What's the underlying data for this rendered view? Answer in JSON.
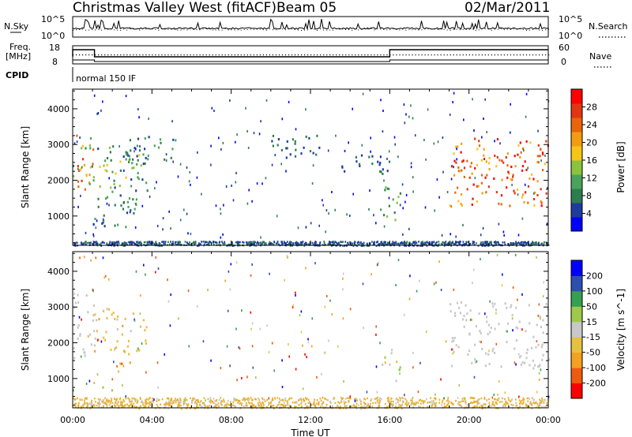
{
  "header": {
    "station": "Christmas Valley West (fitACF)",
    "beam": "Beam 05",
    "date": "02/Mar/2011"
  },
  "summary_panel": {
    "nsky_label": "N.Sky",
    "nsearch_label": "N.Search",
    "noise_tick_top": "10^5",
    "noise_tick_bottom": "10^0",
    "freq_label_line1": "Freq.",
    "freq_label_line2": "[MHz]",
    "freq_ticks": [
      "18",
      "8"
    ],
    "nave_label": "Nave",
    "nave_ticks": [
      "60",
      "0"
    ],
    "cpid_label": "CPID",
    "cpid_value": "normal 150 IF"
  },
  "colors": {
    "power_scale": [
      "#0000ff",
      "#1e3ca0",
      "#2e7d4f",
      "#4aa35a",
      "#8ac33e",
      "#f5c518",
      "#f39c12",
      "#e8650c",
      "#e33512",
      "#ff0000"
    ],
    "velocity_scale": [
      "#ff0000",
      "#ee5a0f",
      "#f4a020",
      "#e8c040",
      "#c8c8c8",
      "#9ec94a",
      "#35a050",
      "#2f4fb0",
      "#0000ff"
    ],
    "ground_scatter": "#c8c8c8"
  },
  "chart_data": [
    {
      "type": "heatmap",
      "title": "",
      "xlabel": "",
      "ylabel": "Slant Range [km]",
      "xlim": [
        "00:00",
        "24:00"
      ],
      "ylim": [
        180,
        4550
      ],
      "x_tick_labels": [
        "00:00",
        "04:00",
        "08:00",
        "12:00",
        "16:00",
        "20:00",
        "00:00"
      ],
      "y_tick_labels": [
        "1000",
        "2000",
        "3000",
        "4000"
      ],
      "colorbar": {
        "label": "Power [dB]",
        "ticks": [
          "28",
          "24",
          "20",
          "16",
          "12",
          "8",
          "4"
        ],
        "range": [
          0,
          30
        ]
      },
      "regions": [
        {
          "t": [
            0.0,
            1.0
          ],
          "r": [
            1600,
            3500
          ],
          "value_dB": [
            8,
            28
          ]
        },
        {
          "t": [
            1.0,
            3.8
          ],
          "r": [
            1700,
            3000
          ],
          "value_dB": [
            4,
            16
          ]
        },
        {
          "t": [
            1.0,
            3.2
          ],
          "r": [
            700,
            1700
          ],
          "value_dB": [
            4,
            12
          ]
        },
        {
          "t": [
            2.5,
            5.2
          ],
          "r": [
            2600,
            3300
          ],
          "value_dB": [
            4,
            12
          ]
        },
        {
          "t": [
            10.0,
            12.5
          ],
          "r": [
            2600,
            3300
          ],
          "value_dB": [
            4,
            8
          ]
        },
        {
          "t": [
            13.5,
            16.0
          ],
          "r": [
            2200,
            2800
          ],
          "value_dB": [
            4,
            8
          ]
        },
        {
          "t": [
            15.5,
            16.5
          ],
          "r": [
            900,
            1900
          ],
          "value_dB": [
            4,
            16
          ]
        },
        {
          "t": [
            19.0,
            24.0
          ],
          "r": [
            1300,
            3200
          ],
          "value_dB": [
            16,
            30
          ]
        }
      ]
    },
    {
      "type": "heatmap",
      "title": "",
      "xlabel": "Time UT",
      "ylabel": "Slant Range [km]",
      "xlim": [
        "00:00",
        "24:00"
      ],
      "ylim": [
        180,
        4550
      ],
      "x_tick_labels": [
        "00:00",
        "04:00",
        "08:00",
        "12:00",
        "16:00",
        "20:00",
        "00:00"
      ],
      "y_tick_labels": [
        "1000",
        "2000",
        "3000",
        "4000"
      ],
      "colorbar": {
        "label": "Velocity [m s^-1]",
        "ticks": [
          "200",
          "100",
          "50",
          "15",
          "-15",
          "-50",
          "-100",
          "-200"
        ],
        "range": [
          -250,
          250
        ]
      },
      "regions": [
        {
          "t": [
            0.0,
            1.2
          ],
          "r": [
            1600,
            3500
          ],
          "value_ms": [
            -15,
            15
          ],
          "note": "ground scatter"
        },
        {
          "t": [
            1.0,
            3.8
          ],
          "r": [
            1700,
            3000
          ],
          "value_ms": [
            -100,
            -15
          ]
        },
        {
          "t": [
            2.2,
            3.0
          ],
          "r": [
            1200,
            1600
          ],
          "value_ms": [
            -200,
            -50
          ]
        },
        {
          "t": [
            1.0,
            2.0
          ],
          "r": [
            700,
            900
          ],
          "value_ms": [
            15,
            50
          ]
        },
        {
          "t": [
            15.5,
            16.5
          ],
          "r": [
            900,
            1900
          ],
          "value_ms": [
            -50,
            100
          ]
        },
        {
          "t": [
            19.0,
            24.0
          ],
          "r": [
            1300,
            3200
          ],
          "value_ms": [
            -15,
            15
          ],
          "note": "ground scatter"
        },
        {
          "t": [
            0.0,
            24.0
          ],
          "r": [
            180,
            450
          ],
          "value_ms": [
            -100,
            -15
          ]
        }
      ]
    }
  ]
}
